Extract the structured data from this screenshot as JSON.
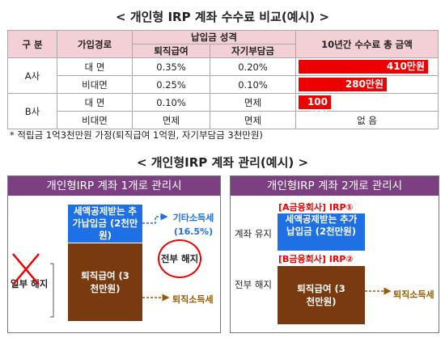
{
  "fee_section": {
    "title": "< 개인형 IRP 계좌 수수료 비교(예시) >",
    "headers": {
      "col1": "구 분",
      "col2": "가입경로",
      "group": "납입금 성격",
      "sub1": "퇴직급여",
      "sub2": "자기부담금",
      "col5": "10년간 수수료 총 금액"
    },
    "rows": [
      {
        "company": "A사",
        "channel": "대 면",
        "retire": "0.35%",
        "self": "0.20%",
        "total": "410만원",
        "amount": 410
      },
      {
        "company": "",
        "channel": "비대면",
        "retire": "0.25%",
        "self": "0.10%",
        "total": "280만원",
        "amount": 280
      },
      {
        "company": "B사",
        "channel": "대 면",
        "retire": "0.10%",
        "self": "면제",
        "total": "100만원",
        "amount": 100
      },
      {
        "company": "",
        "channel": "비대면",
        "retire": "면제",
        "self": "면제",
        "total": "없 음",
        "amount": 0
      }
    ],
    "note": "* 적립금 1억3천만원 가정(퇴직급여 1억원, 자기부담금 3천만원)",
    "bar_color": "#ee0000"
  },
  "manage_section": {
    "title": "< 개인형IRP 계좌 관리(예시) >",
    "left_panel": {
      "header": "개인형IRP 계좌 1개로 관리시",
      "blue_box": "세액공제받는 추가납입금 (2천만원)",
      "brown_box": "퇴직급여 (3천만원)",
      "tax_label": "기타소득세",
      "tax_rate": "(16.5%)",
      "full_cancel": "전부 해지",
      "partial_cancel": "일부 해지",
      "retire_tax": "퇴직소득세"
    },
    "right_panel": {
      "header": "개인형IRP 계좌 2개로 관리시",
      "irp1_label": "[A금융회사] IRP①",
      "irp2_label": "[B금융회사] IRP②",
      "keep_label": "계좌 유지",
      "cancel_label": "전부 해지",
      "blue_box": "세액공제받는 추가납입금 (2천만원)",
      "brown_box": "퇴직급여 (3천만원)",
      "retire_tax": "퇴직소득세"
    },
    "colors": {
      "purple": "#7b3f82",
      "blue": "#1f6fe5",
      "brown": "#7a3a10",
      "red": "#e00000"
    }
  }
}
